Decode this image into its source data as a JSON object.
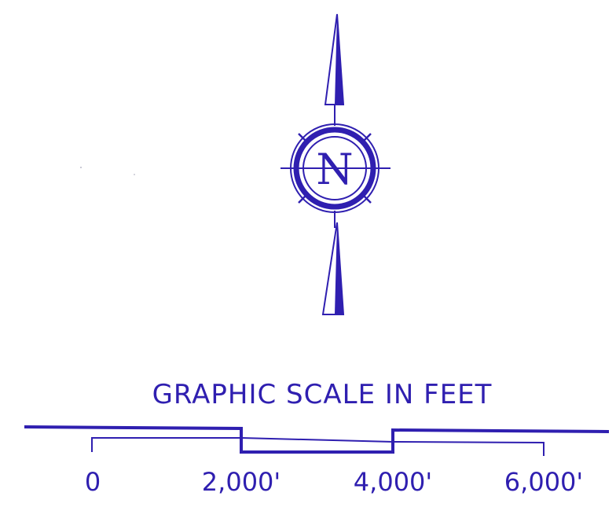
{
  "north_arrow": {
    "letter": "N"
  },
  "scale_bar": {
    "title": "GRAPHIC SCALE IN FEET",
    "labels": [
      "0",
      "2,000'",
      "4,000'",
      "6,000'"
    ]
  },
  "colors": {
    "ink": "#2f1fb0",
    "background": "#ffffff"
  }
}
